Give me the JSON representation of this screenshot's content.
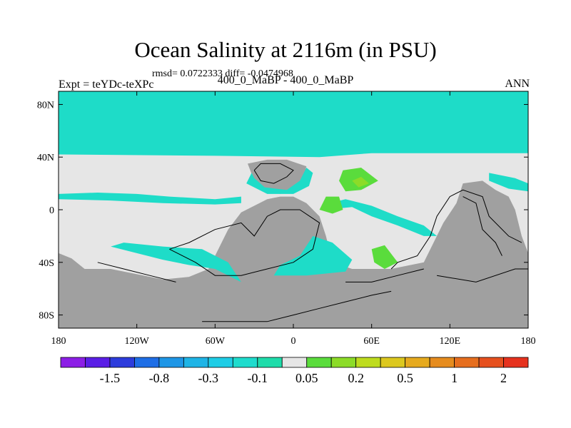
{
  "chart_data": {
    "type": "heatmap",
    "title": "Ocean Salinity at 2116m (in PSU)",
    "stats": "rmsd= 0.0722333 diff= -0.0474968",
    "subtitle_left": "Expt = teYDc-teXPc",
    "subtitle_center": "400_0_MaBP - 400_0_MaBP",
    "subtitle_right": "ANN",
    "x_axis": {
      "range": [
        -180,
        180
      ],
      "ticks": [
        {
          "value": -180,
          "label": "180"
        },
        {
          "value": -120,
          "label": "120W"
        },
        {
          "value": -60,
          "label": "60W"
        },
        {
          "value": 0,
          "label": "0"
        },
        {
          "value": 60,
          "label": "60E"
        },
        {
          "value": 120,
          "label": "120E"
        },
        {
          "value": 180,
          "label": "180"
        }
      ]
    },
    "y_axis": {
      "range": [
        -90,
        90
      ],
      "ticks": [
        {
          "value": 80,
          "label": "80N"
        },
        {
          "value": 40,
          "label": "40N"
        },
        {
          "value": 0,
          "label": "0"
        },
        {
          "value": -40,
          "label": "40S"
        },
        {
          "value": -80,
          "label": "80S"
        }
      ]
    },
    "colorbar": {
      "colors": [
        "#8c1ee6",
        "#5a1ee6",
        "#2d3cdc",
        "#1e6ee6",
        "#1e96e6",
        "#1eb4e6",
        "#1ecde6",
        "#1edccd",
        "#1edcaa",
        "#e6e6e6",
        "#5adc3c",
        "#8cdc28",
        "#bedc1e",
        "#dcc81e",
        "#e6aa1e",
        "#e68c1e",
        "#e66e1e",
        "#e6501e",
        "#e6321e"
      ],
      "labels": [
        "-1.5",
        "-0.8",
        "-0.3",
        "-0.1",
        "0.05",
        "0.2",
        "0.5",
        "1",
        "2"
      ]
    },
    "fill_colors": {
      "background": "#e6e6e6",
      "land": "#a0a0a0",
      "cyan": "#1edcc8",
      "green": "#5adc3c",
      "lightgreen": "#8cdc28"
    },
    "regions": [
      {
        "name": "north-polar-cyan",
        "color": "cyan",
        "polygon": [
          [
            -180,
            90
          ],
          [
            180,
            90
          ],
          [
            180,
            43
          ],
          [
            60,
            43
          ],
          [
            20,
            40
          ],
          [
            -60,
            41
          ],
          [
            -180,
            42
          ]
        ]
      },
      {
        "name": "land-west",
        "color": "land",
        "polygon": [
          [
            -180,
            -90
          ],
          [
            -180,
            -33
          ],
          [
            -170,
            -37
          ],
          [
            -160,
            -45
          ],
          [
            -140,
            -45
          ],
          [
            -120,
            -49
          ],
          [
            -100,
            -53
          ],
          [
            -80,
            -51
          ],
          [
            -65,
            -45
          ],
          [
            -50,
            -15
          ],
          [
            -40,
            -2
          ],
          [
            -20,
            8
          ],
          [
            -10,
            10
          ],
          [
            0,
            10
          ],
          [
            10,
            5
          ],
          [
            20,
            -5
          ],
          [
            25,
            -20
          ],
          [
            30,
            -40
          ],
          [
            45,
            -45
          ],
          [
            75,
            -45
          ],
          [
            100,
            -40
          ],
          [
            115,
            -10
          ],
          [
            125,
            5
          ],
          [
            130,
            20
          ],
          [
            145,
            22
          ],
          [
            155,
            15
          ],
          [
            165,
            10
          ],
          [
            170,
            0
          ],
          [
            175,
            -20
          ],
          [
            180,
            -33
          ],
          [
            180,
            -90
          ]
        ]
      },
      {
        "name": "land-north",
        "color": "land",
        "polygon": [
          [
            -35,
            35
          ],
          [
            -20,
            38
          ],
          [
            -5,
            38
          ],
          [
            10,
            33
          ],
          [
            8,
            25
          ],
          [
            0,
            15
          ],
          [
            -10,
            12
          ],
          [
            -20,
            14
          ],
          [
            -30,
            22
          ]
        ]
      },
      {
        "name": "cyan-equatorial-west",
        "color": "cyan",
        "polygon": [
          [
            -180,
            12
          ],
          [
            -150,
            13
          ],
          [
            -120,
            12
          ],
          [
            -95,
            10
          ],
          [
            -60,
            8
          ],
          [
            -40,
            10
          ],
          [
            -40,
            5
          ],
          [
            -60,
            4
          ],
          [
            -100,
            5
          ],
          [
            -140,
            7
          ],
          [
            -180,
            8
          ]
        ]
      },
      {
        "name": "cyan-ring-north",
        "color": "cyan",
        "polygon": [
          [
            -32,
            28
          ],
          [
            -36,
            20
          ],
          [
            -20,
            12
          ],
          [
            0,
            12
          ],
          [
            12,
            18
          ],
          [
            15,
            28
          ],
          [
            10,
            32
          ],
          [
            5,
            22
          ],
          [
            -5,
            15
          ],
          [
            -22,
            17
          ],
          [
            -30,
            24
          ]
        ]
      },
      {
        "name": "cyan-east-band",
        "color": "cyan",
        "polygon": [
          [
            25,
            0
          ],
          [
            45,
            2
          ],
          [
            60,
            -5
          ],
          [
            80,
            -12
          ],
          [
            100,
            -20
          ],
          [
            110,
            -20
          ],
          [
            100,
            -12
          ],
          [
            80,
            -5
          ],
          [
            60,
            3
          ],
          [
            40,
            8
          ],
          [
            28,
            5
          ]
        ]
      },
      {
        "name": "cyan-south-west",
        "color": "cyan",
        "polygon": [
          [
            -140,
            -28
          ],
          [
            -100,
            -38
          ],
          [
            -80,
            -42
          ],
          [
            -60,
            -45
          ],
          [
            -40,
            -55
          ],
          [
            -50,
            -40
          ],
          [
            -70,
            -30
          ],
          [
            -100,
            -28
          ],
          [
            -130,
            -25
          ]
        ]
      },
      {
        "name": "cyan-south-center",
        "color": "cyan",
        "polygon": [
          [
            -15,
            -50
          ],
          [
            10,
            -50
          ],
          [
            40,
            -47
          ],
          [
            45,
            -38
          ],
          [
            30,
            -25
          ],
          [
            15,
            -20
          ],
          [
            5,
            -35
          ],
          [
            -10,
            -42
          ]
        ]
      },
      {
        "name": "cyan-east-small",
        "color": "cyan",
        "polygon": [
          [
            150,
            28
          ],
          [
            170,
            24
          ],
          [
            180,
            20
          ],
          [
            180,
            14
          ],
          [
            165,
            16
          ],
          [
            150,
            22
          ]
        ]
      },
      {
        "name": "green-north-east",
        "color": "green",
        "polygon": [
          [
            35,
            22
          ],
          [
            38,
            30
          ],
          [
            52,
            32
          ],
          [
            65,
            22
          ],
          [
            52,
            15
          ],
          [
            40,
            14
          ]
        ]
      },
      {
        "name": "lightgreen-north-east",
        "color": "lightgreen",
        "polygon": [
          [
            45,
            22
          ],
          [
            52,
            25
          ],
          [
            58,
            20
          ],
          [
            50,
            17
          ]
        ]
      },
      {
        "name": "green-center",
        "color": "green",
        "polygon": [
          [
            20,
            0
          ],
          [
            25,
            10
          ],
          [
            35,
            10
          ],
          [
            38,
            0
          ],
          [
            30,
            -3
          ]
        ]
      },
      {
        "name": "green-south-east",
        "color": "green",
        "polygon": [
          [
            60,
            -30
          ],
          [
            70,
            -27
          ],
          [
            80,
            -40
          ],
          [
            70,
            -45
          ],
          [
            62,
            -40
          ]
        ]
      }
    ],
    "coastlines": [
      {
        "name": "coast-north-inner",
        "points": [
          [
            -30,
            30
          ],
          [
            -25,
            35
          ],
          [
            -10,
            35
          ],
          [
            0,
            30
          ],
          [
            -5,
            25
          ],
          [
            -15,
            20
          ],
          [
            -25,
            22
          ],
          [
            -30,
            30
          ]
        ]
      },
      {
        "name": "coast-west-continent",
        "points": [
          [
            -95,
            -30
          ],
          [
            -80,
            -25
          ],
          [
            -60,
            -15
          ],
          [
            -40,
            -10
          ],
          [
            -30,
            -20
          ],
          [
            -20,
            -5
          ],
          [
            -10,
            0
          ],
          [
            5,
            0
          ],
          [
            20,
            -10
          ],
          [
            15,
            -30
          ],
          [
            0,
            -40
          ],
          [
            -20,
            -45
          ],
          [
            -40,
            -50
          ],
          [
            -60,
            -50
          ],
          [
            -75,
            -40
          ],
          [
            -95,
            -30
          ]
        ]
      },
      {
        "name": "coast-south-west",
        "points": [
          [
            -150,
            -40
          ],
          [
            -130,
            -45
          ],
          [
            -110,
            -50
          ],
          [
            -90,
            -55
          ]
        ]
      },
      {
        "name": "coast-south-base",
        "points": [
          [
            -70,
            -85
          ],
          [
            -20,
            -85
          ],
          [
            0,
            -80
          ],
          [
            20,
            -75
          ],
          [
            40,
            -70
          ],
          [
            60,
            -65
          ],
          [
            75,
            -62
          ]
        ]
      },
      {
        "name": "coast-east-continent",
        "points": [
          [
            75,
            -45
          ],
          [
            80,
            -40
          ],
          [
            95,
            -35
          ],
          [
            105,
            -20
          ],
          [
            110,
            -5
          ],
          [
            120,
            10
          ],
          [
            130,
            15
          ],
          [
            145,
            10
          ],
          [
            150,
            -5
          ],
          [
            165,
            -20
          ],
          [
            175,
            -25
          ]
        ]
      },
      {
        "name": "coast-east-inner",
        "points": [
          [
            130,
            10
          ],
          [
            140,
            5
          ],
          [
            145,
            -15
          ],
          [
            155,
            -25
          ],
          [
            160,
            -35
          ]
        ]
      },
      {
        "name": "coast-south-center",
        "points": [
          [
            40,
            -55
          ],
          [
            60,
            -55
          ],
          [
            80,
            -50
          ],
          [
            100,
            -45
          ]
        ]
      },
      {
        "name": "coast-antarctic",
        "points": [
          [
            110,
            -50
          ],
          [
            140,
            -55
          ],
          [
            170,
            -45
          ],
          [
            180,
            -45
          ]
        ]
      }
    ]
  }
}
